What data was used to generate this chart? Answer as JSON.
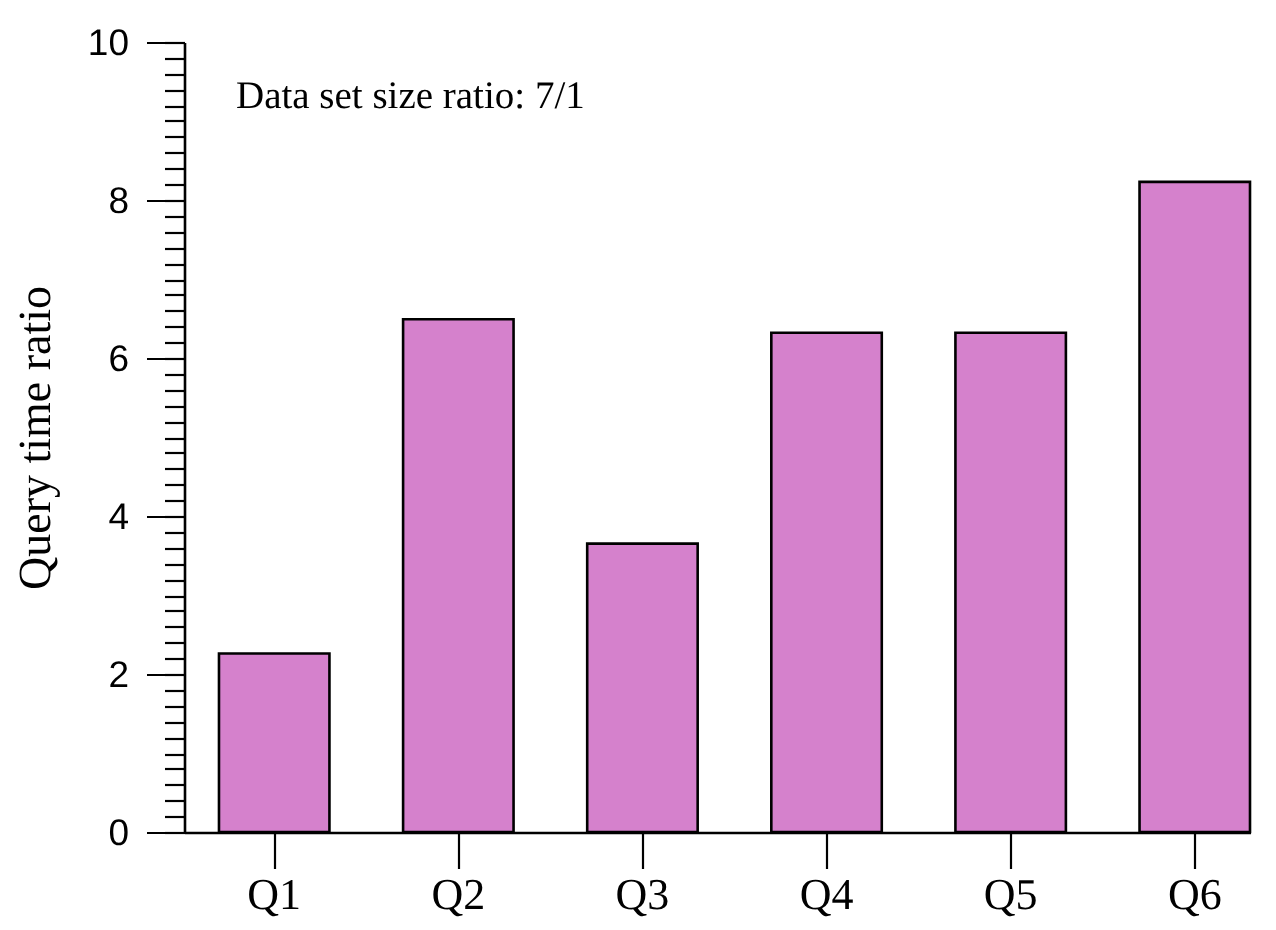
{
  "chart_data": {
    "type": "bar",
    "annotations": [
      "Data set size ratio: 7/1"
    ],
    "ylabel": "Query time ratio",
    "categories": [
      "Q1",
      "Q2",
      "Q3",
      "Q4",
      "Q5",
      "Q6"
    ],
    "values": [
      2.26,
      6.49,
      3.65,
      6.32,
      6.32,
      8.23
    ],
    "color": "#d581cc",
    "ylim": [
      0,
      10
    ],
    "yticks": [
      0,
      {
        "value": 0.2,
        "label": null
      },
      {
        "value": 0.4,
        "label": null
      },
      {
        "value": 0.6,
        "label": null
      },
      {
        "value": 0.8,
        "label": null
      },
      {
        "value": 1,
        "label": null
      },
      {
        "value": 1.2,
        "label": null
      },
      {
        "value": 1.4,
        "label": null
      },
      {
        "value": 1.6,
        "label": null
      },
      {
        "value": 1.8,
        "label": null
      },
      2,
      {
        "value": 2.2,
        "label": null
      },
      {
        "value": 2.4,
        "label": null
      },
      {
        "value": 2.6,
        "label": null
      },
      {
        "value": 2.8,
        "label": null
      },
      {
        "value": 3,
        "label": null
      },
      {
        "value": 3.2,
        "label": null
      },
      {
        "value": 3.4,
        "label": null
      },
      {
        "value": 3.6,
        "label": null
      },
      {
        "value": 3.8,
        "label": null
      },
      4,
      {
        "value": 4.2,
        "label": null
      },
      {
        "value": 4.4,
        "label": null
      },
      {
        "value": 4.6,
        "label": null
      },
      {
        "value": 4.8,
        "label": null
      },
      {
        "value": 5,
        "label": null
      },
      {
        "value": 5.2,
        "label": null
      },
      {
        "value": 5.4,
        "label": null
      },
      {
        "value": 5.6,
        "label": null
      },
      {
        "value": 5.8,
        "label": null
      },
      6,
      {
        "value": 6.2,
        "label": null
      },
      {
        "value": 6.4,
        "label": null
      },
      {
        "value": 6.6,
        "label": null
      },
      {
        "value": 6.8,
        "label": null
      },
      {
        "value": 7,
        "label": null
      },
      {
        "value": 7.2,
        "label": null
      },
      {
        "value": 7.4,
        "label": null
      },
      {
        "value": 7.6,
        "label": null
      },
      {
        "value": 7.8,
        "label": null
      },
      8,
      {
        "value": 8.2,
        "label": null
      },
      {
        "value": 8.4,
        "label": null
      },
      {
        "value": 8.6,
        "label": null
      },
      {
        "value": 8.8,
        "label": null
      },
      {
        "value": 9,
        "label": null
      },
      {
        "value": 9.2,
        "label": null
      },
      {
        "value": 9.4,
        "label": null
      },
      {
        "value": 9.6,
        "label": null
      },
      {
        "value": 9.8,
        "label": null
      },
      10
    ]
  }
}
